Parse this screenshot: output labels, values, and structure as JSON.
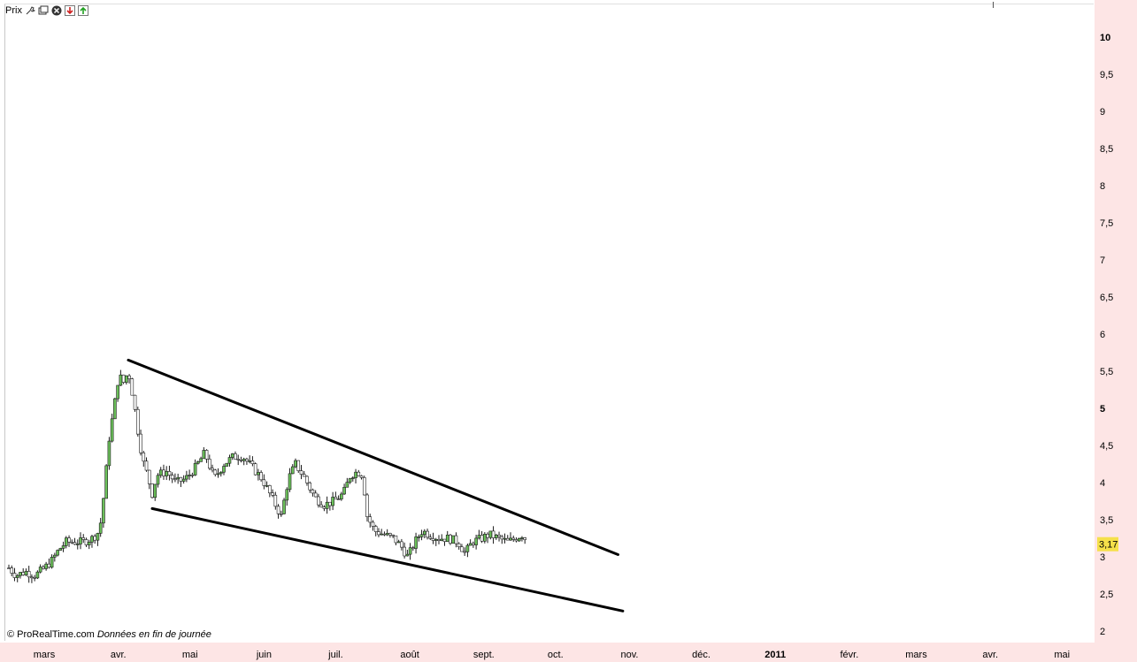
{
  "toolbar": {
    "title": "Prix",
    "icons": [
      "wrench-icon",
      "window-icon",
      "close-icon",
      "arrow-down-icon",
      "arrow-up-icon"
    ]
  },
  "footer": {
    "copyright": "© ProRealTime.com",
    "note": "Données en fin de journée"
  },
  "colors": {
    "axis_bg": "#fde5e5",
    "bull_candle": "#6bc05a",
    "bear_candle": "#ffffff",
    "wick": "#1a1a1a",
    "trendline": "#000000",
    "last_price_bg": "#f5e04a"
  },
  "chart_data": {
    "type": "candlestick",
    "title": "",
    "y_axis": {
      "ticks": [
        "10",
        "9,5",
        "9",
        "8,5",
        "8",
        "7,5",
        "7",
        "6,5",
        "6",
        "5,5",
        "5",
        "4,5",
        "4",
        "3,5",
        "3",
        "2,5",
        "2"
      ],
      "bold_ticks": [
        "10",
        "5"
      ],
      "range": [
        2,
        10
      ]
    },
    "last_price": {
      "label": "3,17",
      "value": 3.17
    },
    "x_axis": {
      "labels": [
        {
          "text": "mars",
          "day": 0
        },
        {
          "text": "avr.",
          "day": 31
        },
        {
          "text": "mai",
          "day": 61
        },
        {
          "text": "juin",
          "day": 92
        },
        {
          "text": "juil.",
          "day": 122
        },
        {
          "text": "août",
          "day": 153
        },
        {
          "text": "sept.",
          "day": 184
        },
        {
          "text": "oct.",
          "day": 214
        },
        {
          "text": "nov.",
          "day": 245
        },
        {
          "text": "déc.",
          "day": 275
        },
        {
          "text": "2011",
          "day": 306,
          "bold": true
        },
        {
          "text": "févr.",
          "day": 337
        },
        {
          "text": "mars",
          "day": 365
        },
        {
          "text": "avr.",
          "day": 396
        },
        {
          "text": "mai",
          "day": 426
        }
      ]
    },
    "price_path": [
      [
        0,
        2.85
      ],
      [
        3,
        2.75
      ],
      [
        7,
        2.8
      ],
      [
        11,
        2.75
      ],
      [
        15,
        2.85
      ],
      [
        18,
        2.95
      ],
      [
        21,
        3.1
      ],
      [
        24,
        3.2
      ],
      [
        27,
        3.2
      ],
      [
        31,
        3.2
      ],
      [
        35,
        3.25
      ],
      [
        38,
        3.35
      ],
      [
        40,
        3.9
      ],
      [
        42,
        4.6
      ],
      [
        44,
        5.0
      ],
      [
        46,
        5.45
      ],
      [
        48,
        5.35
      ],
      [
        50,
        5.5
      ],
      [
        52,
        5.15
      ],
      [
        54,
        4.7
      ],
      [
        56,
        4.3
      ],
      [
        58,
        4.1
      ],
      [
        60,
        3.85
      ],
      [
        62,
        4.1
      ],
      [
        66,
        4.15
      ],
      [
        70,
        4.0
      ],
      [
        74,
        4.05
      ],
      [
        78,
        4.2
      ],
      [
        82,
        4.4
      ],
      [
        86,
        4.05
      ],
      [
        90,
        4.25
      ],
      [
        94,
        4.35
      ],
      [
        98,
        4.35
      ],
      [
        102,
        4.2
      ],
      [
        106,
        4.05
      ],
      [
        110,
        3.8
      ],
      [
        114,
        3.55
      ],
      [
        117,
        4.05
      ],
      [
        120,
        4.25
      ],
      [
        124,
        4.05
      ],
      [
        128,
        3.8
      ],
      [
        132,
        3.7
      ],
      [
        136,
        3.75
      ],
      [
        140,
        3.85
      ],
      [
        143,
        4.1
      ],
      [
        146,
        4.15
      ],
      [
        148,
        4.1
      ],
      [
        150,
        3.55
      ],
      [
        153,
        3.35
      ],
      [
        157,
        3.3
      ],
      [
        161,
        3.25
      ],
      [
        164,
        3.15
      ],
      [
        167,
        3.0
      ],
      [
        170,
        3.2
      ],
      [
        173,
        3.35
      ],
      [
        176,
        3.3
      ],
      [
        180,
        3.25
      ],
      [
        184,
        3.25
      ],
      [
        188,
        3.2
      ],
      [
        191,
        3.05
      ],
      [
        194,
        3.2
      ],
      [
        198,
        3.25
      ],
      [
        201,
        3.3
      ],
      [
        205,
        3.25
      ],
      [
        209,
        3.2
      ],
      [
        212,
        3.25
      ],
      [
        215,
        3.3
      ],
      [
        217,
        3.2
      ]
    ],
    "trendlines": [
      {
        "name": "upper-resistance",
        "from": [
          50,
          5.65
        ],
        "to": [
          255,
          3.03
        ]
      },
      {
        "name": "lower-support",
        "from": [
          60,
          3.65
        ],
        "to": [
          257,
          2.27
        ]
      }
    ]
  }
}
